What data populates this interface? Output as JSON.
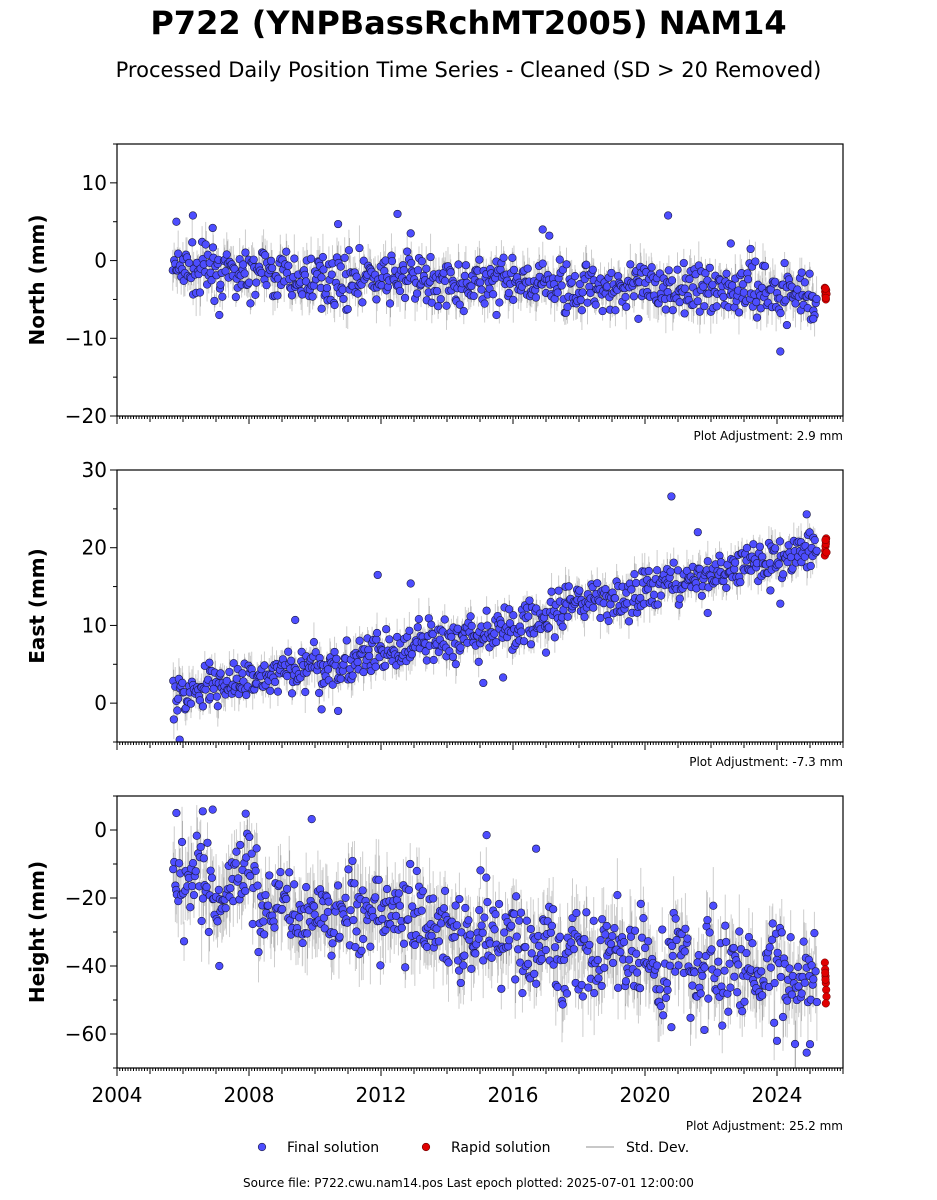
{
  "title": "P722 (YNPBassRchMT2005) NAM14",
  "subtitle": "Processed Daily Position Time Series - Cleaned (SD > 20 Removed)",
  "source_line": "Source file: P722.cwu.nam14.pos  Last epoch plotted: 2025-07-01 12:00:00",
  "legend": [
    {
      "label": "Final solution",
      "color": "#4d4dff"
    },
    {
      "label": "Rapid solution",
      "color": "#e00000"
    },
    {
      "label": "Std. Dev.",
      "color": "#c8c8c8"
    }
  ],
  "chart_data": [
    {
      "type": "scatter",
      "ylabel": "North (mm)",
      "xlim": [
        2004,
        2026
      ],
      "ylim": [
        -20,
        15
      ],
      "yticks": [
        10,
        0,
        -10,
        -20
      ],
      "ytick_labels": [
        "10",
        "0",
        "−10",
        "−20"
      ],
      "adjustment": "Plot Adjustment: 2.9 mm",
      "series": [
        {
          "role": "final",
          "x": [
            2005.7,
            2006.0,
            2006.5,
            2007.0,
            2007.5,
            2008.0,
            2008.5,
            2009.0,
            2009.5,
            2010.0,
            2010.5,
            2011.0,
            2011.5,
            2012.0,
            2012.5,
            2013.0,
            2013.5,
            2014.0,
            2014.5,
            2015.0,
            2015.5,
            2016.0,
            2016.5,
            2017.0,
            2017.5,
            2018.0,
            2018.5,
            2019.0,
            2019.5,
            2020.0,
            2020.5,
            2021.0,
            2021.5,
            2022.0,
            2022.5,
            2023.0,
            2023.5,
            2024.0,
            2024.5,
            2025.0,
            2025.2
          ],
          "y": [
            -1.0,
            -1.2,
            -1.4,
            -1.5,
            -1.6,
            -1.8,
            -1.9,
            -2.0,
            -2.1,
            -2.1,
            -2.2,
            -2.3,
            -2.3,
            -2.4,
            -2.4,
            -2.5,
            -2.6,
            -2.7,
            -2.8,
            -2.9,
            -3.0,
            -3.1,
            -3.2,
            -3.2,
            -3.3,
            -3.3,
            -3.4,
            -3.4,
            -3.4,
            -3.5,
            -3.5,
            -3.5,
            -3.6,
            -3.6,
            -3.6,
            -3.7,
            -3.7,
            -3.8,
            -3.8,
            -3.9,
            -3.9
          ],
          "spread": 3.5,
          "outliers": [
            [
              2005.8,
              5.0
            ],
            [
              2006.3,
              5.8
            ],
            [
              2006.9,
              4.2
            ],
            [
              2007.1,
              -7.0
            ],
            [
              2010.2,
              -6.2
            ],
            [
              2010.7,
              4.7
            ],
            [
              2012.5,
              6.0
            ],
            [
              2012.9,
              3.5
            ],
            [
              2015.5,
              -7.0
            ],
            [
              2016.9,
              4.0
            ],
            [
              2017.1,
              3.2
            ],
            [
              2019.8,
              -7.5
            ],
            [
              2020.7,
              5.8
            ],
            [
              2021.2,
              -6.8
            ],
            [
              2022.6,
              2.2
            ],
            [
              2023.2,
              1.5
            ],
            [
              2024.3,
              -8.3
            ],
            [
              2024.1,
              -11.7
            ],
            [
              2025.1,
              -7.5
            ]
          ]
        },
        {
          "role": "rapid",
          "x": [
            2025.45,
            2025.46,
            2025.47,
            2025.48,
            2025.49,
            2025.5,
            2025.48,
            2025.47
          ],
          "y": [
            -3.5,
            -4.0,
            -4.5,
            -5.0,
            -3.8,
            -4.3,
            -4.8,
            -3.6
          ]
        }
      ]
    },
    {
      "type": "scatter",
      "ylabel": "East (mm)",
      "xlim": [
        2004,
        2026
      ],
      "ylim": [
        -5,
        30
      ],
      "yticks": [
        30,
        20,
        10,
        0
      ],
      "ytick_labels": [
        "30",
        "20",
        "10",
        "0"
      ],
      "adjustment": "Plot Adjustment: -7.3 mm",
      "series": [
        {
          "role": "final",
          "x": [
            2005.7,
            2006.0,
            2006.5,
            2007.0,
            2007.5,
            2008.0,
            2008.5,
            2009.0,
            2009.5,
            2010.0,
            2010.5,
            2011.0,
            2011.5,
            2012.0,
            2012.5,
            2013.0,
            2013.5,
            2014.0,
            2014.5,
            2015.0,
            2015.5,
            2016.0,
            2016.5,
            2017.0,
            2017.5,
            2018.0,
            2018.5,
            2019.0,
            2019.5,
            2020.0,
            2020.5,
            2021.0,
            2021.5,
            2022.0,
            2022.5,
            2023.0,
            2023.5,
            2024.0,
            2024.5,
            2025.0,
            2025.2
          ],
          "y": [
            0.8,
            1.0,
            1.5,
            2.0,
            2.6,
            3.0,
            3.4,
            3.9,
            4.2,
            4.6,
            5.0,
            5.5,
            5.9,
            6.2,
            6.6,
            7.0,
            7.5,
            8.0,
            8.4,
            8.8,
            9.2,
            9.6,
            10.2,
            10.9,
            11.6,
            12.3,
            13.0,
            13.5,
            14.0,
            14.6,
            15.1,
            15.7,
            16.2,
            16.7,
            17.2,
            17.7,
            18.2,
            18.7,
            19.2,
            19.7,
            20.0
          ],
          "spread": 3.0,
          "outliers": [
            [
              2005.9,
              -4.7
            ],
            [
              2006.8,
              5.2
            ],
            [
              2009.4,
              10.7
            ],
            [
              2010.2,
              -0.8
            ],
            [
              2010.7,
              -1.0
            ],
            [
              2011.9,
              16.5
            ],
            [
              2012.9,
              15.4
            ],
            [
              2015.1,
              2.6
            ],
            [
              2015.7,
              3.3
            ],
            [
              2016.5,
              13.2
            ],
            [
              2017.0,
              6.5
            ],
            [
              2020.8,
              26.6
            ],
            [
              2021.6,
              22.0
            ],
            [
              2021.9,
              11.6
            ],
            [
              2023.8,
              14.5
            ],
            [
              2024.1,
              12.8
            ],
            [
              2024.9,
              24.3
            ]
          ]
        },
        {
          "role": "rapid",
          "x": [
            2025.45,
            2025.46,
            2025.47,
            2025.48,
            2025.49,
            2025.5,
            2025.48,
            2025.47
          ],
          "y": [
            19.0,
            19.6,
            20.2,
            20.8,
            21.2,
            19.4,
            20.5,
            21.0
          ]
        }
      ]
    },
    {
      "type": "scatter",
      "ylabel": "Height (mm)",
      "xlabel": "",
      "xlim": [
        2004,
        2026
      ],
      "ylim": [
        -70,
        10
      ],
      "yticks": [
        0,
        -20,
        -40,
        -60
      ],
      "ytick_labels": [
        "0",
        "−20",
        "−40",
        "−60"
      ],
      "xticks": [
        2004,
        2008,
        2012,
        2016,
        2020,
        2024
      ],
      "xtick_labels": [
        "2004",
        "2008",
        "2012",
        "2016",
        "2020",
        "2024"
      ],
      "adjustment": "Plot Adjustment: 25.2 mm",
      "series": [
        {
          "role": "final",
          "x": [
            2005.7,
            2006.0,
            2006.5,
            2007.0,
            2007.5,
            2008.0,
            2008.5,
            2009.0,
            2009.5,
            2010.0,
            2010.5,
            2011.0,
            2011.5,
            2012.0,
            2012.5,
            2013.0,
            2013.5,
            2014.0,
            2014.5,
            2015.0,
            2015.5,
            2016.0,
            2016.5,
            2017.0,
            2017.5,
            2018.0,
            2018.5,
            2019.0,
            2019.5,
            2020.0,
            2020.5,
            2021.0,
            2021.5,
            2022.0,
            2022.5,
            2023.0,
            2023.5,
            2024.0,
            2024.5,
            2025.0,
            2025.2
          ],
          "y": [
            -12,
            -18,
            -10,
            -22,
            -15,
            -13,
            -24,
            -17,
            -27,
            -20,
            -29,
            -22,
            -30,
            -24,
            -28,
            -22,
            -32,
            -25,
            -34,
            -26,
            -35,
            -28,
            -38,
            -30,
            -40,
            -32,
            -41,
            -33,
            -42,
            -35,
            -43,
            -36,
            -44,
            -37,
            -44,
            -38,
            -45,
            -38,
            -47,
            -40,
            -45
          ],
          "spread": 14,
          "outliers": [
            [
              2005.8,
              5.0
            ],
            [
              2006.6,
              5.5
            ],
            [
              2006.9,
              6.0
            ],
            [
              2007.1,
              -40.0
            ],
            [
              2007.9,
              4.8
            ],
            [
              2009.9,
              3.2
            ],
            [
              2015.2,
              -1.5
            ],
            [
              2016.7,
              -5.5
            ],
            [
              2020.8,
              -58.0
            ],
            [
              2021.8,
              -58.8
            ],
            [
              2024.0,
              -62.0
            ],
            [
              2024.9,
              -65.5
            ],
            [
              2025.0,
              -63.0
            ]
          ]
        },
        {
          "role": "rapid",
          "x": [
            2025.45,
            2025.46,
            2025.47,
            2025.48,
            2025.49,
            2025.5,
            2025.48,
            2025.47,
            2025.46
          ],
          "y": [
            -39,
            -41,
            -43,
            -45,
            -47,
            -49,
            -51,
            -44,
            -42
          ]
        }
      ]
    }
  ]
}
